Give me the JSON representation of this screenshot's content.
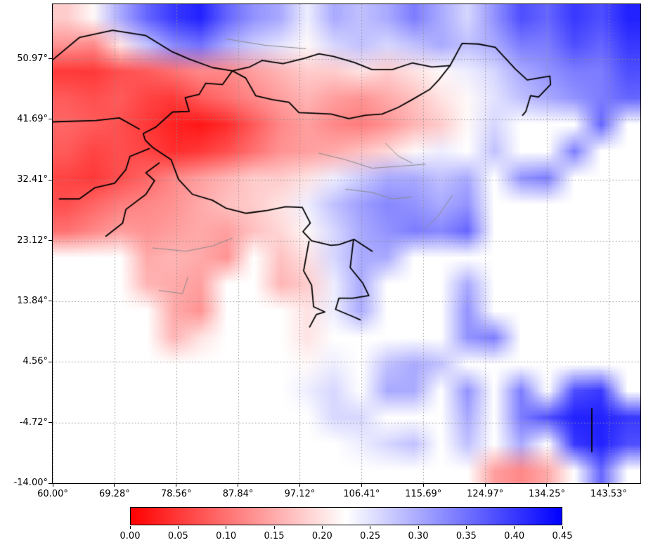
{
  "figure": {
    "background_color": "#ffffff",
    "title": ""
  },
  "chart_data": {
    "type": "heatmap",
    "description_of_plot": "Geographic raster heatmap over South/East/Southeast Asia, red-to-blue colormap, data over land only, ocean white, with black country borders, gray admin borders and dotted lat/lon gridlines",
    "title": "",
    "x_axis": {
      "label": "",
      "range": [
        60.0,
        148.3
      ],
      "ticks": [
        60.0,
        69.28,
        78.56,
        87.84,
        97.12,
        106.41,
        115.69,
        124.97,
        134.25,
        143.53
      ],
      "tick_labels": [
        "60.00°",
        "69.28°",
        "78.56°",
        "87.84°",
        "97.12°",
        "106.41°",
        "115.69°",
        "124.97°",
        "134.25°",
        "143.53°"
      ]
    },
    "y_axis": {
      "label": "",
      "range": [
        -14.0,
        59.3
      ],
      "ticks": [
        -14.0,
        -4.72,
        4.56,
        13.84,
        23.12,
        32.41,
        41.69,
        50.97
      ],
      "tick_labels": [
        "-14.00°",
        "-4.72°",
        "4.56°",
        "13.84°",
        "23.12°",
        "32.41°",
        "41.69°",
        "50.97°"
      ]
    },
    "grid": {
      "on": true,
      "style": "dotted",
      "color": "#8f8f8f"
    },
    "colorbar": {
      "orientation": "horizontal",
      "range": [
        0.0,
        0.45
      ],
      "ticks": [
        0.0,
        0.05,
        0.1,
        0.15,
        0.2,
        0.25,
        0.3,
        0.35,
        0.4,
        0.45
      ],
      "tick_labels": [
        "0.00",
        "0.05",
        "0.10",
        "0.15",
        "0.20",
        "0.25",
        "0.30",
        "0.35",
        "0.40",
        "0.45"
      ],
      "colormap": "red-white-blue",
      "stops": [
        "#ff0000",
        "#ffffff",
        "#0000ff"
      ]
    },
    "grid_values": {
      "note": "coarse estimate of the plotted field; 22 columns span lon 60-148.3E, 18 rows span lat 59.3N (top) to -14S (bottom); null = ocean / no data",
      "cols": 22,
      "rows": 18,
      "values": [
        [
          0.18,
          0.22,
          0.3,
          0.36,
          0.4,
          0.42,
          0.36,
          0.32,
          0.3,
          0.24,
          0.3,
          0.28,
          0.3,
          0.34,
          0.3,
          0.26,
          0.32,
          0.38,
          0.36,
          0.4,
          0.38,
          0.42
        ],
        [
          0.13,
          0.12,
          0.2,
          0.28,
          0.33,
          0.35,
          0.3,
          0.27,
          0.25,
          0.22,
          0.26,
          0.28,
          0.26,
          0.28,
          0.3,
          0.28,
          0.3,
          0.34,
          0.34,
          0.38,
          0.36,
          0.4
        ],
        [
          0.05,
          0.05,
          0.07,
          0.08,
          0.1,
          0.12,
          0.12,
          0.14,
          0.16,
          0.18,
          0.18,
          0.2,
          0.18,
          0.2,
          0.22,
          0.24,
          0.26,
          0.3,
          0.32,
          0.34,
          0.34,
          0.38
        ],
        [
          0.08,
          0.07,
          0.08,
          0.06,
          0.05,
          0.08,
          0.1,
          0.12,
          0.14,
          0.16,
          0.14,
          0.13,
          0.15,
          0.17,
          0.2,
          0.22,
          0.25,
          0.28,
          0.3,
          0.32,
          0.34,
          0.36
        ],
        [
          0.09,
          0.08,
          0.07,
          0.05,
          0.03,
          0.02,
          0.04,
          0.08,
          0.12,
          0.14,
          0.12,
          0.11,
          0.13,
          0.16,
          0.18,
          0.22,
          0.26,
          null,
          null,
          null,
          0.36,
          null
        ],
        [
          0.08,
          0.06,
          0.07,
          0.06,
          0.04,
          0.05,
          0.07,
          0.1,
          0.13,
          0.14,
          0.15,
          0.17,
          0.19,
          0.22,
          0.24,
          null,
          0.28,
          null,
          null,
          0.34,
          null,
          null
        ],
        [
          0.06,
          0.05,
          0.07,
          0.09,
          0.12,
          0.14,
          0.16,
          0.18,
          0.18,
          0.2,
          0.24,
          0.27,
          0.3,
          0.3,
          0.28,
          0.3,
          null,
          0.32,
          0.34,
          null,
          null,
          null
        ],
        [
          0.07,
          0.09,
          0.11,
          0.12,
          0.13,
          0.15,
          0.17,
          0.18,
          0.2,
          0.24,
          0.28,
          0.31,
          0.33,
          0.32,
          0.3,
          0.32,
          null,
          null,
          null,
          null,
          null,
          null
        ],
        [
          0.1,
          0.12,
          0.14,
          0.13,
          0.14,
          0.15,
          0.14,
          0.17,
          0.19,
          0.22,
          0.26,
          0.3,
          0.32,
          0.34,
          0.33,
          0.36,
          null,
          null,
          null,
          null,
          null,
          null
        ],
        [
          null,
          null,
          null,
          0.15,
          0.16,
          0.15,
          0.13,
          null,
          0.17,
          0.2,
          0.26,
          0.3,
          0.3,
          null,
          null,
          null,
          null,
          null,
          null,
          null,
          null,
          null
        ],
        [
          null,
          null,
          null,
          0.16,
          0.15,
          0.14,
          null,
          null,
          0.16,
          0.18,
          0.24,
          0.3,
          null,
          null,
          null,
          0.3,
          null,
          null,
          null,
          null,
          null,
          null
        ],
        [
          null,
          null,
          null,
          null,
          0.15,
          0.13,
          null,
          null,
          null,
          0.2,
          0.24,
          0.3,
          null,
          null,
          null,
          0.32,
          null,
          null,
          null,
          null,
          null,
          null
        ],
        [
          null,
          null,
          null,
          null,
          0.16,
          0.2,
          null,
          null,
          null,
          0.2,
          null,
          null,
          null,
          null,
          null,
          0.32,
          0.34,
          null,
          null,
          null,
          null,
          null
        ],
        [
          null,
          null,
          null,
          null,
          null,
          null,
          null,
          null,
          null,
          0.22,
          0.24,
          null,
          0.28,
          0.3,
          0.28,
          null,
          null,
          null,
          null,
          null,
          null,
          null
        ],
        [
          null,
          null,
          null,
          null,
          null,
          null,
          null,
          null,
          null,
          0.24,
          0.26,
          null,
          0.3,
          0.3,
          null,
          0.32,
          null,
          0.34,
          null,
          0.38,
          0.4,
          null
        ],
        [
          null,
          null,
          null,
          null,
          null,
          null,
          null,
          null,
          null,
          null,
          0.26,
          0.26,
          null,
          null,
          null,
          0.3,
          null,
          0.34,
          0.38,
          0.42,
          0.42,
          0.4
        ],
        [
          null,
          null,
          null,
          null,
          null,
          null,
          null,
          null,
          null,
          null,
          null,
          0.24,
          0.26,
          0.28,
          null,
          0.28,
          null,
          0.3,
          null,
          0.4,
          0.42,
          0.38
        ],
        [
          null,
          null,
          null,
          null,
          null,
          null,
          null,
          null,
          null,
          null,
          null,
          null,
          null,
          null,
          null,
          null,
          0.14,
          0.12,
          0.15,
          null,
          0.36,
          null
        ]
      ]
    },
    "borders": {
      "country_color": "#000000",
      "admin_color": "#8a8a8a",
      "country_lines": [
        [
          [
            60,
            50.8
          ],
          [
            64,
            54.2
          ],
          [
            69,
            55.3
          ],
          [
            74,
            54.5
          ],
          [
            78,
            52.0
          ],
          [
            80.5,
            50.9
          ],
          [
            84,
            49.6
          ],
          [
            87,
            49.1
          ]
        ],
        [
          [
            87,
            49.1
          ],
          [
            89,
            48.0
          ],
          [
            90.5,
            45.3
          ],
          [
            93,
            44.7
          ],
          [
            95.5,
            44.3
          ],
          [
            97,
            42.7
          ],
          [
            99.5,
            42.6
          ],
          [
            101.8,
            42.5
          ],
          [
            104.5,
            41.8
          ],
          [
            107,
            42.3
          ],
          [
            109.5,
            42.5
          ],
          [
            111.9,
            43.5
          ],
          [
            114,
            44.7
          ],
          [
            116.7,
            46.3
          ],
          [
            118,
            47.7
          ],
          [
            119.7,
            49.9
          ],
          [
            117,
            49.7
          ],
          [
            114,
            50.3
          ],
          [
            111,
            49.3
          ],
          [
            108,
            49.3
          ],
          [
            105.3,
            50.4
          ],
          [
            102.2,
            51.3
          ],
          [
            100,
            51.7
          ],
          [
            97.8,
            51.0
          ],
          [
            94.6,
            50.2
          ],
          [
            91.5,
            50.7
          ],
          [
            89.6,
            49.7
          ],
          [
            87,
            49.1
          ]
        ],
        [
          [
            119.7,
            49.9
          ],
          [
            121.5,
            53.3
          ],
          [
            124,
            53.2
          ],
          [
            126.5,
            52.7
          ],
          [
            129.5,
            49.4
          ],
          [
            131.3,
            47.7
          ],
          [
            134.7,
            48.3
          ],
          [
            134.8,
            47.0
          ],
          [
            133,
            45.1
          ],
          [
            131.8,
            45.3
          ],
          [
            131.1,
            42.9
          ],
          [
            130.6,
            42.3
          ]
        ],
        [
          [
            87,
            49.1
          ],
          [
            85.5,
            47.0
          ],
          [
            83,
            47.2
          ],
          [
            82,
            45.5
          ],
          [
            79.9,
            45.0
          ],
          [
            80.5,
            42.9
          ],
          [
            78,
            42.8
          ],
          [
            75.5,
            40.5
          ],
          [
            73.6,
            39.5
          ],
          [
            73.9,
            38.5
          ],
          [
            75,
            37.4
          ],
          [
            77.8,
            35.5
          ],
          [
            78.9,
            32.5
          ],
          [
            81,
            30.2
          ],
          [
            84,
            29.3
          ],
          [
            86,
            28.1
          ],
          [
            89,
            27.3
          ],
          [
            92,
            27.7
          ],
          [
            95,
            28.3
          ],
          [
            97.5,
            28.2
          ],
          [
            98.7,
            25.8
          ],
          [
            97.6,
            24.5
          ],
          [
            98.9,
            23.1
          ],
          [
            101.8,
            22.4
          ],
          [
            103,
            22.5
          ],
          [
            105.3,
            23.3
          ],
          [
            108,
            21.5
          ]
        ],
        [
          [
            68,
            23.8
          ],
          [
            70.5,
            25.8
          ],
          [
            71,
            27.9
          ],
          [
            74,
            30.2
          ],
          [
            75.3,
            32.3
          ],
          [
            74,
            33.5
          ],
          [
            76,
            35.0
          ]
        ],
        [
          [
            61,
            29.5
          ],
          [
            64,
            29.5
          ],
          [
            66.3,
            31.2
          ],
          [
            69.3,
            31.9
          ],
          [
            71,
            34.0
          ],
          [
            71.6,
            36.0
          ],
          [
            74.5,
            37.2
          ]
        ],
        [
          [
            60,
            41.3
          ],
          [
            66.5,
            41.5
          ],
          [
            70,
            41.9
          ],
          [
            73,
            40.2
          ]
        ],
        [
          [
            98.5,
            23.0
          ],
          [
            97.7,
            18.5
          ],
          [
            98.9,
            16.3
          ],
          [
            99.2,
            13.0
          ],
          [
            100.9,
            12.2
          ],
          [
            99.6,
            11.8
          ],
          [
            98.6,
            9.9
          ]
        ],
        [
          [
            105.2,
            23.3
          ],
          [
            104.7,
            19.0
          ],
          [
            106.6,
            16.6
          ],
          [
            107.5,
            14.7
          ],
          [
            105.1,
            14.3
          ],
          [
            103,
            14.3
          ],
          [
            102.5,
            12.6
          ],
          [
            105.1,
            11.5
          ],
          [
            106.2,
            11.0
          ]
        ],
        [
          [
            141,
            -2.6
          ],
          [
            141,
            -9.2
          ]
        ]
      ],
      "admin_lines": [
        [
          [
            75,
            22.0
          ],
          [
            80,
            21.5
          ],
          [
            84,
            22.3
          ],
          [
            87,
            23.5
          ]
        ],
        [
          [
            76,
            15.5
          ],
          [
            79.5,
            15.0
          ],
          [
            80.3,
            17.5
          ]
        ],
        [
          [
            100,
            36.5
          ],
          [
            104,
            35.5
          ],
          [
            108,
            34.2
          ],
          [
            112,
            34.5
          ],
          [
            116,
            34.8
          ]
        ],
        [
          [
            104,
            31.0
          ],
          [
            108,
            30.5
          ],
          [
            111,
            29.5
          ],
          [
            114,
            29.8
          ]
        ],
        [
          [
            110,
            38.0
          ],
          [
            112,
            36.0
          ],
          [
            114,
            35.0
          ]
        ],
        [
          [
            86,
            54.0
          ],
          [
            92,
            53.0
          ],
          [
            98,
            52.5
          ]
        ],
        [
          [
            120,
            30.0
          ],
          [
            118,
            27.0
          ],
          [
            116,
            25.0
          ]
        ]
      ]
    }
  }
}
